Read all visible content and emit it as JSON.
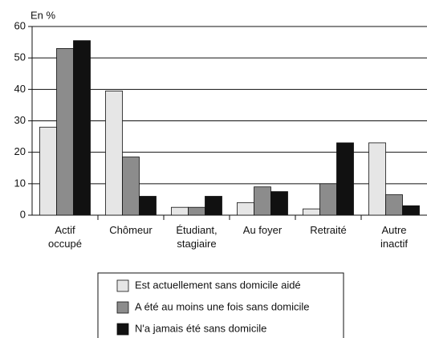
{
  "chart_data": {
    "type": "bar",
    "y_label": "En %",
    "categories": [
      [
        "Actif",
        "occupé"
      ],
      [
        "Chômeur"
      ],
      [
        "Étudiant,",
        "stagiaire"
      ],
      [
        "Au foyer"
      ],
      [
        "Retraité"
      ],
      [
        "Autre",
        "inactif"
      ]
    ],
    "series": [
      {
        "name": "Est actuellement sans domicile aidé",
        "color": "#e6e6e6",
        "values": [
          28,
          39.5,
          2.5,
          4,
          2,
          23
        ]
      },
      {
        "name": "A été au moins une fois sans domicile",
        "color": "#8c8c8c",
        "values": [
          53,
          18.5,
          2.5,
          9,
          10,
          6.5
        ]
      },
      {
        "name": "N'a jamais été sans domicile",
        "color": "#111111",
        "values": [
          55.5,
          6,
          6,
          7.5,
          23,
          3
        ]
      }
    ],
    "ylim": [
      0,
      60
    ],
    "yticks": [
      0,
      10,
      20,
      30,
      40,
      50,
      60
    ],
    "grid": true
  }
}
